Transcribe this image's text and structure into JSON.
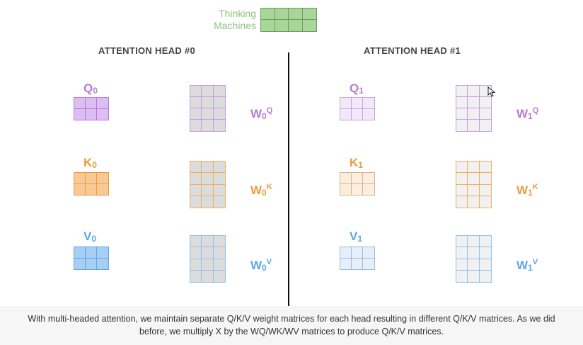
{
  "input": {
    "label_line1": "Thinking",
    "label_line2": "Machines",
    "color": "#8dc47f"
  },
  "heads": [
    {
      "title": "ATTENTION HEAD #0",
      "q": {
        "base": "Q",
        "sub": "0",
        "color": "#b57ad6"
      },
      "k": {
        "base": "K",
        "sub": "0",
        "color": "#ec9b3b"
      },
      "v": {
        "base": "V",
        "sub": "0",
        "color": "#5aa6e6"
      },
      "wq": {
        "base": "W",
        "sub": "0",
        "sup": "Q"
      },
      "wk": {
        "base": "W",
        "sub": "0",
        "sup": "K"
      },
      "wv": {
        "base": "W",
        "sub": "0",
        "sup": "V"
      }
    },
    {
      "title": "ATTENTION HEAD #1",
      "q": {
        "base": "Q",
        "sub": "1",
        "color": "#b57ad6"
      },
      "k": {
        "base": "K",
        "sub": "1",
        "color": "#ec9b3b"
      },
      "v": {
        "base": "V",
        "sub": "1",
        "color": "#5aa6e6"
      },
      "wq": {
        "base": "W",
        "sub": "1",
        "sup": "Q"
      },
      "wk": {
        "base": "W",
        "sub": "1",
        "sup": "K"
      },
      "wv": {
        "base": "W",
        "sub": "1",
        "sup": "V"
      }
    }
  ],
  "caption": "With multi-headed attention, we maintain separate Q/K/V weight matrices for each head resulting in different Q/K/V matrices. As we did before, we multiply X by the WQ/WK/WV matrices to produce Q/K/V matrices."
}
